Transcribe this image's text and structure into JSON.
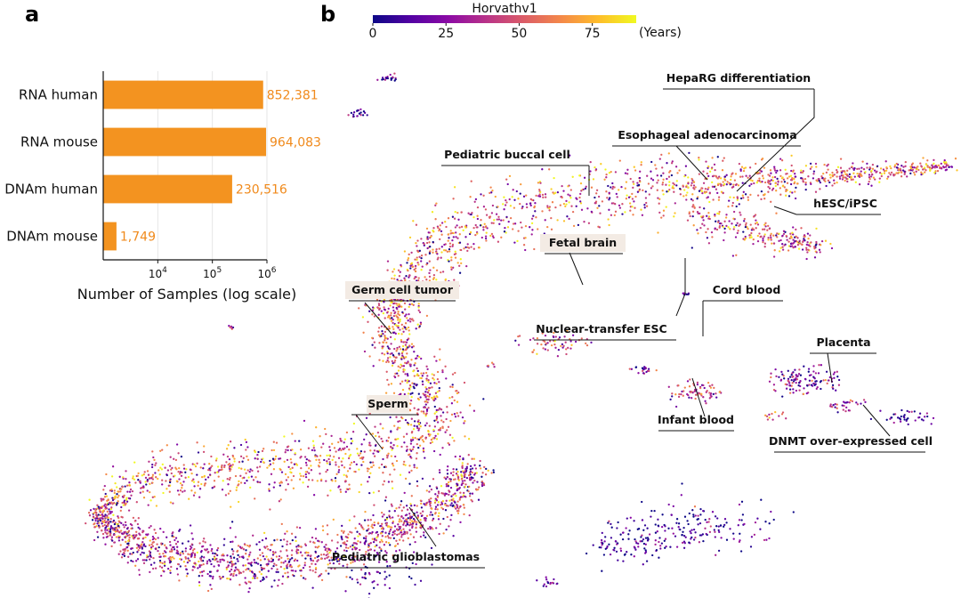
{
  "panel_a_letter": "a",
  "panel_b_letter": "b",
  "chart_data": [
    {
      "type": "bar",
      "orientation": "horizontal",
      "scale": "log",
      "categories": [
        "RNA human",
        "RNA mouse",
        "DNAm human",
        "DNAm mouse"
      ],
      "values": [
        852381,
        964083,
        230516,
        1749
      ],
      "value_labels": [
        "852,381",
        "964,083",
        "230,516",
        "1,749"
      ],
      "xlabel": "Number of Samples (log scale)",
      "xlim": [
        1000,
        1000000
      ],
      "xticks": [
        {
          "value": 10000,
          "base": "10",
          "exp": "4"
        },
        {
          "value": 100000,
          "base": "10",
          "exp": "5"
        },
        {
          "value": 1000000,
          "base": "10",
          "exp": "6"
        }
      ],
      "bar_color": "#f39320",
      "label_color": "#f08a1c",
      "grid": true
    },
    {
      "type": "scatter",
      "description_kind": "embedding",
      "color_variable": "Horvathv1",
      "colorbar": {
        "title": "Horvathv1",
        "ticks": [
          "0",
          "25",
          "50",
          "75"
        ],
        "tick_values": [
          0,
          25,
          50,
          75
        ],
        "range": [
          0,
          90
        ],
        "unit": "(Years)",
        "colormap": [
          "#0d0887",
          "#5302a3",
          "#8b0aa5",
          "#b83289",
          "#db5c68",
          "#f48849",
          "#febd2a",
          "#f0f921"
        ]
      },
      "annotations": [
        "HepaRG differentiation",
        "Esophageal adenocarcinoma",
        "Pediatric buccal cell",
        "hESC/iPSC",
        "Fetal brain",
        "Germ cell tumor",
        "Cord blood",
        "Nuclear-transfer ESC",
        "Placenta",
        "Sperm",
        "Infant blood",
        "DNMT over-expressed cell",
        "Pediatric glioblastomas"
      ]
    }
  ]
}
